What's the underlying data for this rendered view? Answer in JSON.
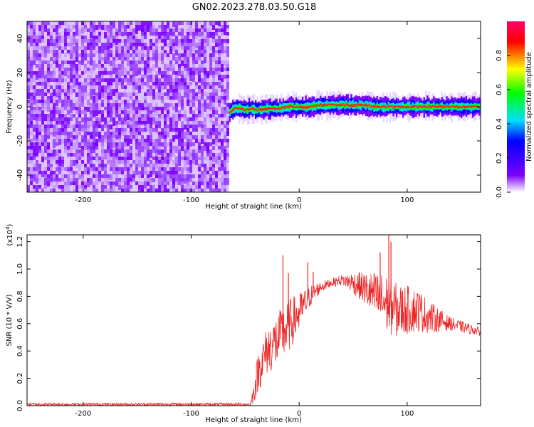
{
  "title": "GN02.2023.278.03.50.G18",
  "chart_data": [
    {
      "type": "heatmap",
      "xlabel": "Height of straight line (km)",
      "ylabel": "Frequency (Hz)",
      "xlim": [
        -252,
        168
      ],
      "ylim": [
        -50,
        50
      ],
      "x_ticks": [
        -200,
        -100,
        0,
        100
      ],
      "y_ticks": [
        -40,
        -20,
        0,
        20,
        40
      ],
      "noise_region_x": [
        -252,
        -65
      ],
      "signal_ridge": {
        "x": [
          -65,
          -60,
          -55,
          -50,
          -45,
          -40,
          -30,
          -20,
          -10,
          0,
          10,
          20,
          30,
          40,
          50,
          60,
          70,
          80,
          90,
          100,
          120,
          140,
          168
        ],
        "frequency": [
          -3,
          -1,
          -1,
          -2,
          -1,
          -2,
          -1,
          -1,
          0,
          0,
          0,
          1,
          1,
          1,
          1,
          1,
          0,
          0,
          0,
          0,
          0,
          0,
          0
        ]
      },
      "colorbar": {
        "label": "Normalized spectral amplitude",
        "range": [
          0,
          1
        ],
        "ticks": [
          "0.0",
          "0.2",
          "0.4",
          "0.6",
          "0.8"
        ],
        "colormap": [
          "#ffffff",
          "#7a00ff",
          "#0000ff",
          "#00e0ff",
          "#00ff00",
          "#ffff00",
          "#ff0000",
          "#ff0066"
        ]
      }
    },
    {
      "type": "line",
      "xlabel": "Height of straight line (km)",
      "ylabel": "SNR (10 * V/V)",
      "y_multiplier": "(x10",
      "y_multiplier_exp": "4",
      "y_multiplier_close": ")",
      "xlim": [
        -252,
        168
      ],
      "ylim": [
        0,
        1.25
      ],
      "x_ticks": [
        -200,
        -100,
        0,
        100
      ],
      "y_ticks": [
        "0.0",
        "0.2",
        "0.4",
        "0.6",
        "0.8",
        "1.0",
        "1.2"
      ],
      "series": [
        {
          "color": "#ee2222",
          "envelope": {
            "x": [
              -252,
              -45,
              -42,
              -38,
              -30,
              -20,
              -10,
              0,
              10,
              20,
              30,
              40,
              50,
              60,
              70,
              80,
              90,
              100,
              110,
              120,
              140,
              168
            ],
            "mean": [
              0.01,
              0.01,
              0.1,
              0.25,
              0.4,
              0.48,
              0.58,
              0.68,
              0.8,
              0.87,
              0.9,
              0.92,
              0.9,
              0.86,
              0.8,
              0.75,
              0.7,
              0.7,
              0.7,
              0.65,
              0.6,
              0.54
            ],
            "spread": [
              0.01,
              0.01,
              0.08,
              0.15,
              0.18,
              0.2,
              0.2,
              0.15,
              0.08,
              0.04,
              0.03,
              0.04,
              0.08,
              0.12,
              0.18,
              0.22,
              0.2,
              0.18,
              0.16,
              0.12,
              0.05,
              0.03
            ]
          },
          "spikes": [
            {
              "x": -15,
              "y": 1.1
            },
            {
              "x": -10,
              "y": 0.97
            },
            {
              "x": 8,
              "y": 1.05
            },
            {
              "x": 13,
              "y": 0.98
            },
            {
              "x": 75,
              "y": 1.12
            },
            {
              "x": 83,
              "y": 1.25
            },
            {
              "x": 85,
              "y": 1.2
            }
          ]
        }
      ]
    }
  ]
}
